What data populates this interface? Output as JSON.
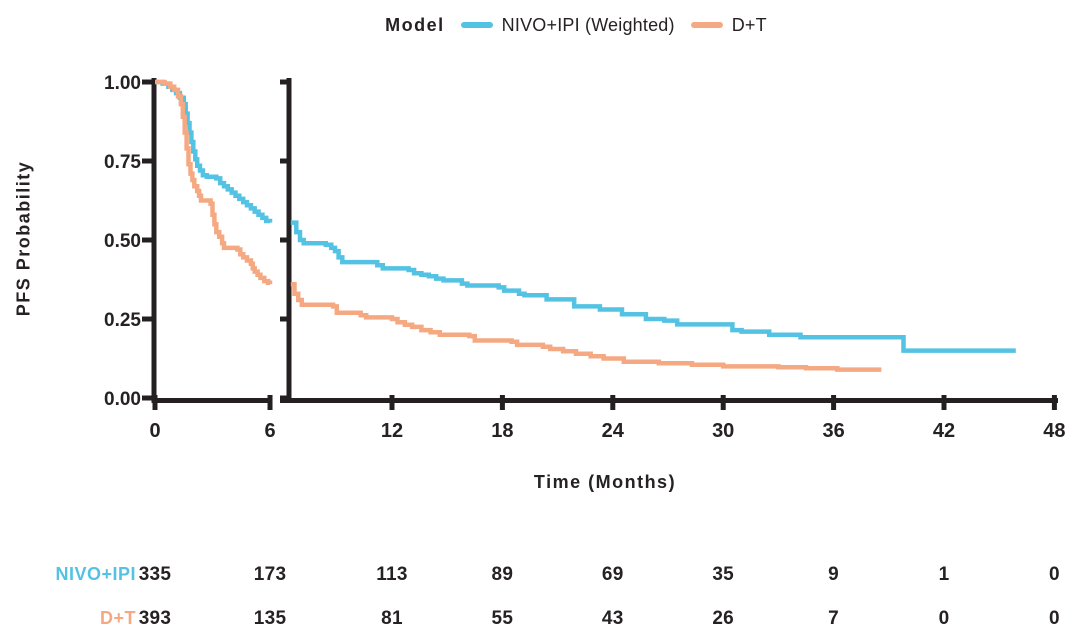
{
  "legend": {
    "title": "Model",
    "items": [
      {
        "label": "NIVO+IPI (Weighted)",
        "color": "#54C2E3"
      },
      {
        "label": "D+T",
        "color": "#F5A983"
      }
    ]
  },
  "axes": {
    "y_label": "PFS Probability",
    "x_label": "Time (Months)",
    "y_ticks": [
      "0.00",
      "0.25",
      "0.50",
      "0.75",
      "1.00"
    ],
    "x_ticks_pre_break": [
      0,
      6
    ],
    "x_ticks_post_break": [
      12,
      18,
      24,
      30,
      36,
      42,
      48
    ],
    "axis_color": "#242021"
  },
  "chart_data": {
    "type": "line",
    "subtype": "kaplan-meier-step",
    "title": "Model",
    "xlabel": "Time (Months)",
    "ylabel": "PFS Probability",
    "xlim": [
      0,
      48
    ],
    "ylim": [
      0.0,
      1.0
    ],
    "x_break": [
      6,
      6.4
    ],
    "grid": false,
    "legend_position": "top",
    "series": [
      {
        "name": "NIVO+IPI (Weighted)",
        "color": "#54C2E3",
        "pre_break": [
          [
            0,
            1.0
          ],
          [
            0.4,
            0.995
          ],
          [
            0.7,
            0.985
          ],
          [
            0.9,
            0.975
          ],
          [
            1.1,
            0.965
          ],
          [
            1.3,
            0.95
          ],
          [
            1.5,
            0.93
          ],
          [
            1.6,
            0.9
          ],
          [
            1.7,
            0.87
          ],
          [
            1.8,
            0.84
          ],
          [
            1.9,
            0.81
          ],
          [
            2.0,
            0.78
          ],
          [
            2.1,
            0.755
          ],
          [
            2.2,
            0.735
          ],
          [
            2.35,
            0.72
          ],
          [
            2.5,
            0.705
          ],
          [
            2.7,
            0.7
          ],
          [
            3.2,
            0.695
          ],
          [
            3.4,
            0.68
          ],
          [
            3.6,
            0.67
          ],
          [
            3.8,
            0.66
          ],
          [
            4.0,
            0.65
          ],
          [
            4.2,
            0.64
          ],
          [
            4.4,
            0.63
          ],
          [
            4.6,
            0.62
          ],
          [
            4.8,
            0.61
          ],
          [
            5.0,
            0.6
          ],
          [
            5.2,
            0.59
          ],
          [
            5.4,
            0.58
          ],
          [
            5.6,
            0.57
          ],
          [
            5.8,
            0.56
          ],
          [
            6.0,
            0.555
          ]
        ],
        "post_break": [
          [
            6.5,
            0.555
          ],
          [
            6.8,
            0.525
          ],
          [
            7.0,
            0.5
          ],
          [
            7.2,
            0.49
          ],
          [
            8.4,
            0.485
          ],
          [
            8.7,
            0.475
          ],
          [
            8.9,
            0.465
          ],
          [
            9.1,
            0.445
          ],
          [
            9.3,
            0.43
          ],
          [
            11.2,
            0.42
          ],
          [
            11.5,
            0.41
          ],
          [
            12.9,
            0.405
          ],
          [
            13.2,
            0.395
          ],
          [
            13.6,
            0.39
          ],
          [
            14.0,
            0.385
          ],
          [
            14.4,
            0.378
          ],
          [
            14.8,
            0.372
          ],
          [
            15.8,
            0.362
          ],
          [
            16.1,
            0.356
          ],
          [
            17.8,
            0.35
          ],
          [
            18.1,
            0.34
          ],
          [
            18.9,
            0.33
          ],
          [
            19.2,
            0.325
          ],
          [
            20.4,
            0.312
          ],
          [
            21.9,
            0.29
          ],
          [
            23.3,
            0.28
          ],
          [
            24.5,
            0.265
          ],
          [
            25.8,
            0.25
          ],
          [
            26.8,
            0.245
          ],
          [
            27.5,
            0.233
          ],
          [
            30.5,
            0.215
          ],
          [
            31.0,
            0.21
          ],
          [
            32.5,
            0.2
          ],
          [
            34.2,
            0.192
          ],
          [
            39.8,
            0.15
          ],
          [
            45.9,
            0.15
          ]
        ]
      },
      {
        "name": "D+T",
        "color": "#F5A983",
        "pre_break": [
          [
            0,
            1.0
          ],
          [
            0.5,
            0.995
          ],
          [
            0.8,
            0.985
          ],
          [
            1.0,
            0.975
          ],
          [
            1.2,
            0.955
          ],
          [
            1.35,
            0.93
          ],
          [
            1.45,
            0.89
          ],
          [
            1.55,
            0.84
          ],
          [
            1.65,
            0.79
          ],
          [
            1.75,
            0.74
          ],
          [
            1.85,
            0.71
          ],
          [
            1.95,
            0.69
          ],
          [
            2.05,
            0.67
          ],
          [
            2.2,
            0.655
          ],
          [
            2.3,
            0.64
          ],
          [
            2.4,
            0.625
          ],
          [
            2.9,
            0.615
          ],
          [
            3.0,
            0.58
          ],
          [
            3.1,
            0.55
          ],
          [
            3.2,
            0.525
          ],
          [
            3.35,
            0.51
          ],
          [
            3.5,
            0.49
          ],
          [
            3.6,
            0.475
          ],
          [
            4.3,
            0.47
          ],
          [
            4.45,
            0.455
          ],
          [
            4.6,
            0.445
          ],
          [
            4.8,
            0.435
          ],
          [
            5.0,
            0.425
          ],
          [
            5.1,
            0.41
          ],
          [
            5.2,
            0.4
          ],
          [
            5.35,
            0.39
          ],
          [
            5.5,
            0.38
          ],
          [
            5.7,
            0.37
          ],
          [
            5.9,
            0.365
          ],
          [
            6.0,
            0.36
          ]
        ],
        "post_break": [
          [
            6.5,
            0.36
          ],
          [
            6.7,
            0.33
          ],
          [
            6.9,
            0.31
          ],
          [
            7.1,
            0.295
          ],
          [
            8.8,
            0.29
          ],
          [
            9.0,
            0.27
          ],
          [
            10.3,
            0.262
          ],
          [
            10.6,
            0.255
          ],
          [
            12.0,
            0.25
          ],
          [
            12.3,
            0.24
          ],
          [
            12.7,
            0.232
          ],
          [
            13.1,
            0.225
          ],
          [
            13.6,
            0.215
          ],
          [
            14.1,
            0.208
          ],
          [
            14.6,
            0.2
          ],
          [
            16.2,
            0.196
          ],
          [
            16.5,
            0.182
          ],
          [
            18.5,
            0.178
          ],
          [
            18.8,
            0.168
          ],
          [
            20.2,
            0.162
          ],
          [
            20.6,
            0.155
          ],
          [
            21.3,
            0.148
          ],
          [
            22.0,
            0.14
          ],
          [
            22.8,
            0.132
          ],
          [
            23.5,
            0.125
          ],
          [
            24.6,
            0.115
          ],
          [
            26.5,
            0.11
          ],
          [
            28.3,
            0.105
          ],
          [
            30.0,
            0.1
          ],
          [
            33.0,
            0.097
          ],
          [
            34.5,
            0.094
          ],
          [
            36.2,
            0.09
          ],
          [
            38.6,
            0.09
          ]
        ]
      }
    ]
  },
  "risk_table": {
    "time_points": [
      0,
      6,
      12,
      18,
      24,
      30,
      36,
      42,
      48
    ],
    "rows": [
      {
        "label": "NIVO+IPI",
        "color": "#54C2E3",
        "counts": [
          "335",
          "173",
          "113",
          "89",
          "69",
          "35",
          "9",
          "1",
          "0"
        ]
      },
      {
        "label": "D+T",
        "color": "#F5A983",
        "counts": [
          "393",
          "135",
          "81",
          "55",
          "43",
          "26",
          "7",
          "0",
          "0"
        ]
      }
    ]
  }
}
